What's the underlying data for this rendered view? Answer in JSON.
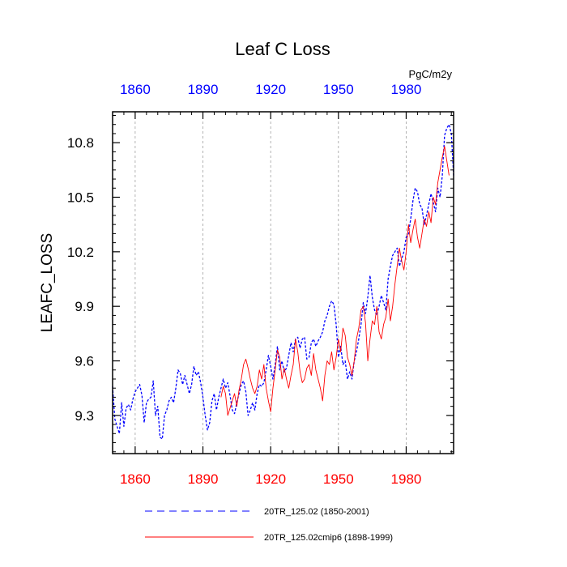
{
  "chart_data": {
    "type": "line",
    "title": "Leaf C Loss",
    "units_label": "PgC/m2y",
    "ylabel": "LEAFC_LOSS",
    "xlabel": "",
    "xlim": [
      1850,
      2001
    ],
    "ylim": [
      9.09,
      10.97
    ],
    "x_ticks": [
      1860,
      1890,
      1920,
      1950,
      1980
    ],
    "x_tick_labels": [
      "1860",
      "1890",
      "1920",
      "1950",
      "1980"
    ],
    "y_ticks": [
      9.3,
      9.6,
      9.9,
      10.2,
      10.5,
      10.8
    ],
    "y_tick_labels": [
      "9.3",
      "9.6",
      "9.9",
      "10.2",
      "10.5",
      "10.8"
    ],
    "top_axis_color": "#0000ff",
    "bottom_axis_color": "#ff0000",
    "grid": "vertical dashed at major x ticks",
    "series": [
      {
        "name": "20TR_125.02 (1850-2001)",
        "style": "dashed",
        "color": "#0000ff",
        "x_start": 1850,
        "values": [
          9.46,
          9.28,
          9.24,
          9.2,
          9.37,
          9.24,
          9.34,
          9.36,
          9.33,
          9.39,
          9.43,
          9.45,
          9.47,
          9.41,
          9.26,
          9.37,
          9.39,
          9.4,
          9.49,
          9.3,
          9.35,
          9.18,
          9.17,
          9.3,
          9.33,
          9.38,
          9.4,
          9.37,
          9.45,
          9.55,
          9.53,
          9.47,
          9.52,
          9.47,
          9.42,
          9.47,
          9.57,
          9.52,
          9.54,
          9.48,
          9.4,
          9.3,
          9.22,
          9.26,
          9.38,
          9.42,
          9.33,
          9.4,
          9.45,
          9.5,
          9.45,
          9.48,
          9.41,
          9.33,
          9.31,
          9.37,
          9.42,
          9.47,
          9.49,
          9.43,
          9.3,
          9.33,
          9.37,
          9.33,
          9.42,
          9.47,
          9.46,
          9.48,
          9.55,
          9.63,
          9.57,
          9.5,
          9.58,
          9.68,
          9.55,
          9.6,
          9.54,
          9.56,
          9.63,
          9.7,
          9.65,
          9.72,
          9.73,
          9.67,
          9.72,
          9.73,
          9.61,
          9.62,
          9.7,
          9.72,
          9.68,
          9.71,
          9.73,
          9.76,
          9.82,
          9.85,
          9.9,
          9.93,
          9.91,
          9.8,
          9.62,
          9.68,
          9.58,
          9.6,
          9.5,
          9.54,
          9.5,
          9.6,
          9.65,
          9.72,
          9.8,
          9.92,
          9.86,
          9.95,
          10.07,
          9.95,
          9.88,
          9.85,
          9.9,
          9.96,
          9.92,
          9.88,
          10.05,
          10.12,
          10.18,
          10.2,
          10.22,
          10.12,
          10.16,
          10.2,
          10.28,
          10.3,
          10.38,
          10.48,
          10.55,
          10.53,
          10.46,
          10.44,
          10.35,
          10.4,
          10.46,
          10.52,
          10.47,
          10.42,
          10.55,
          10.5,
          10.62,
          10.84,
          10.88,
          10.9,
          10.85,
          10.62
        ]
      },
      {
        "name": "20TR_125.02cmip6 (1898-1999)",
        "style": "solid",
        "color": "#ff0000",
        "x_start": 1898,
        "values": [
          9.4,
          9.46,
          9.42,
          9.3,
          9.34,
          9.38,
          9.42,
          9.35,
          9.44,
          9.5,
          9.58,
          9.61,
          9.56,
          9.5,
          9.45,
          9.42,
          9.46,
          9.55,
          9.5,
          9.58,
          9.45,
          9.38,
          9.32,
          9.45,
          9.55,
          9.66,
          9.62,
          9.5,
          9.56,
          9.5,
          9.45,
          9.52,
          9.58,
          9.72,
          9.65,
          9.54,
          9.48,
          9.5,
          9.56,
          9.58,
          9.52,
          9.64,
          9.55,
          9.5,
          9.45,
          9.38,
          9.52,
          9.6,
          9.58,
          9.65,
          9.55,
          9.62,
          9.72,
          9.65,
          9.78,
          9.74,
          9.62,
          9.58,
          9.52,
          9.6,
          9.72,
          9.78,
          9.88,
          9.9,
          9.81,
          9.6,
          9.72,
          9.82,
          9.8,
          9.9,
          9.76,
          9.72,
          9.8,
          9.84,
          9.94,
          9.82,
          9.9,
          10.02,
          10.12,
          10.22,
          10.15,
          10.1,
          10.2,
          10.35,
          10.25,
          10.32,
          10.38,
          10.28,
          10.22,
          10.3,
          10.38,
          10.34,
          10.42,
          10.36,
          10.5,
          10.46,
          10.58,
          10.65,
          10.72,
          10.78,
          10.7,
          10.62
        ]
      }
    ]
  }
}
